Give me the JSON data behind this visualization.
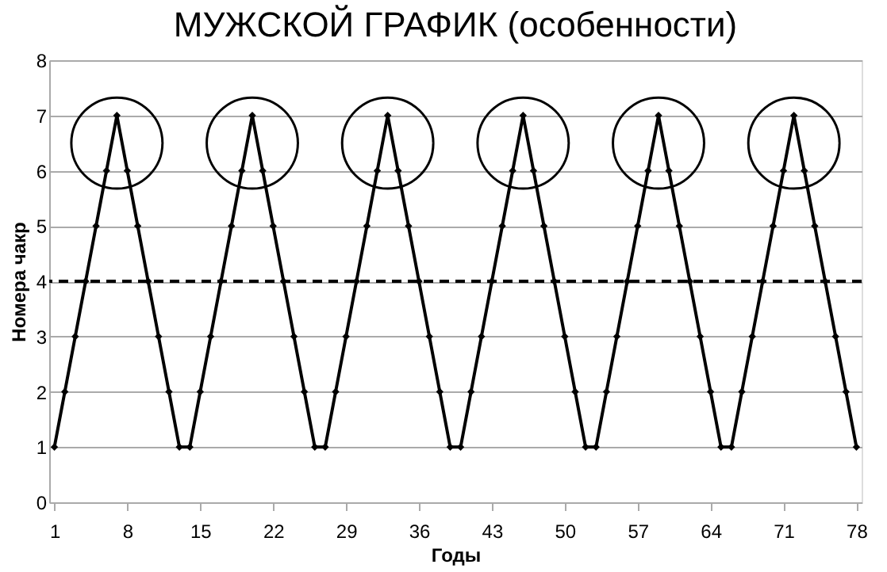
{
  "chart_data": {
    "type": "line",
    "title": "МУЖСКОЙ ГРАФИК (особенности)",
    "xlabel": "Годы",
    "ylabel": "Номера чакр",
    "x": [
      1,
      2,
      3,
      4,
      5,
      6,
      7,
      8,
      9,
      10,
      11,
      12,
      13,
      14,
      15,
      16,
      17,
      18,
      19,
      20,
      21,
      22,
      23,
      24,
      25,
      26,
      27,
      28,
      29,
      30,
      31,
      32,
      33,
      34,
      35,
      36,
      37,
      38,
      39,
      40,
      41,
      42,
      43,
      44,
      45,
      46,
      47,
      48,
      49,
      50,
      51,
      52,
      53,
      54,
      55,
      56,
      57,
      58,
      59,
      60,
      61,
      62,
      63,
      64,
      65,
      66,
      67,
      68,
      69,
      70,
      71,
      72,
      73,
      74,
      75,
      76,
      77,
      78
    ],
    "series": [
      {
        "color": "#000000",
        "values": [
          1,
          2,
          3,
          4,
          5,
          6,
          7,
          6,
          5,
          4,
          3,
          2,
          1,
          1,
          2,
          3,
          4,
          5,
          6,
          7,
          6,
          5,
          4,
          3,
          2,
          1,
          1,
          2,
          3,
          4,
          5,
          6,
          7,
          6,
          5,
          4,
          3,
          2,
          1,
          1,
          2,
          3,
          4,
          5,
          6,
          7,
          6,
          5,
          4,
          3,
          2,
          1,
          1,
          2,
          3,
          4,
          5,
          6,
          7,
          6,
          5,
          4,
          3,
          2,
          1,
          1,
          2,
          3,
          4,
          5,
          6,
          7,
          6,
          5,
          4,
          3,
          2,
          1
        ]
      }
    ],
    "xlim": [
      0.5,
      78.5
    ],
    "xticks": [
      1,
      8,
      15,
      22,
      29,
      36,
      43,
      50,
      57,
      64,
      71,
      78
    ],
    "ylim": [
      0,
      8
    ],
    "yticks": [
      0,
      1,
      2,
      3,
      4,
      5,
      6,
      7,
      8
    ],
    "ref_lines": [
      {
        "axis": "y",
        "value": 4,
        "color": "#000000",
        "line_style": "dashed"
      }
    ],
    "grid": "y",
    "marker": "diamond",
    "line_style": "solid"
  }
}
